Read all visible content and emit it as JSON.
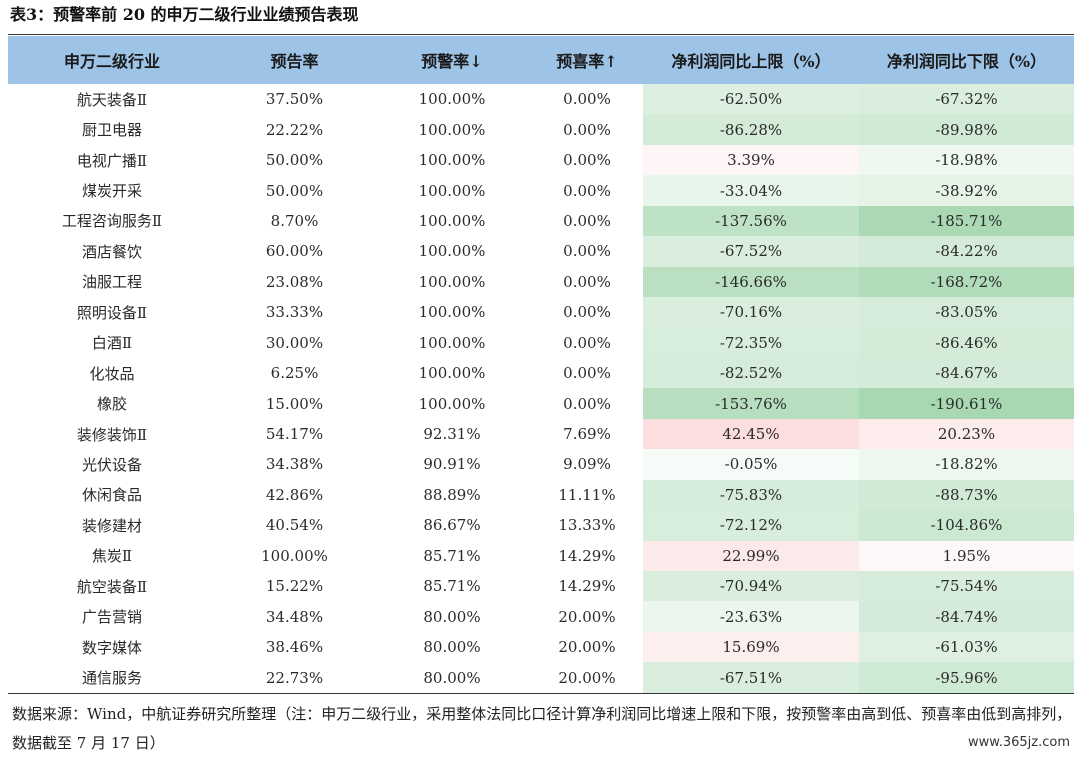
{
  "caption": "表3：预警率前 20 的申万二级行业业绩预告表现",
  "headers": [
    "申万二级行业",
    "预告率",
    "预警率↓",
    "预喜率↑",
    "净利润同比上限（%）",
    "净利润同比下限（%）"
  ],
  "colors": {
    "header_bg": "#9dc3e6",
    "positive": "#e8554f",
    "negative": "#5db66f"
  },
  "rows": [
    {
      "industry": "航天装备Ⅱ",
      "forecast_rate": "37.50%",
      "warning_rate": "100.00%",
      "happy_rate": "0.00%",
      "upper": "-62.50%",
      "lower": "-67.32%",
      "upper_val": -62.5,
      "lower_val": -67.32
    },
    {
      "industry": "厨卫电器",
      "forecast_rate": "22.22%",
      "warning_rate": "100.00%",
      "happy_rate": "0.00%",
      "upper": "-86.28%",
      "lower": "-89.98%",
      "upper_val": -86.28,
      "lower_val": -89.98
    },
    {
      "industry": "电视广播Ⅱ",
      "forecast_rate": "50.00%",
      "warning_rate": "100.00%",
      "happy_rate": "0.00%",
      "upper": "3.39%",
      "lower": "-18.98%",
      "upper_val": 3.39,
      "lower_val": -18.98
    },
    {
      "industry": "煤炭开采",
      "forecast_rate": "50.00%",
      "warning_rate": "100.00%",
      "happy_rate": "0.00%",
      "upper": "-33.04%",
      "lower": "-38.92%",
      "upper_val": -33.04,
      "lower_val": -38.92
    },
    {
      "industry": "工程咨询服务Ⅱ",
      "forecast_rate": "8.70%",
      "warning_rate": "100.00%",
      "happy_rate": "0.00%",
      "upper": "-137.56%",
      "lower": "-185.71%",
      "upper_val": -137.56,
      "lower_val": -185.71
    },
    {
      "industry": "酒店餐饮",
      "forecast_rate": "60.00%",
      "warning_rate": "100.00%",
      "happy_rate": "0.00%",
      "upper": "-67.52%",
      "lower": "-84.22%",
      "upper_val": -67.52,
      "lower_val": -84.22
    },
    {
      "industry": "油服工程",
      "forecast_rate": "23.08%",
      "warning_rate": "100.00%",
      "happy_rate": "0.00%",
      "upper": "-146.66%",
      "lower": "-168.72%",
      "upper_val": -146.66,
      "lower_val": -168.72
    },
    {
      "industry": "照明设备Ⅱ",
      "forecast_rate": "33.33%",
      "warning_rate": "100.00%",
      "happy_rate": "0.00%",
      "upper": "-70.16%",
      "lower": "-83.05%",
      "upper_val": -70.16,
      "lower_val": -83.05
    },
    {
      "industry": "白酒Ⅱ",
      "forecast_rate": "30.00%",
      "warning_rate": "100.00%",
      "happy_rate": "0.00%",
      "upper": "-72.35%",
      "lower": "-86.46%",
      "upper_val": -72.35,
      "lower_val": -86.46
    },
    {
      "industry": "化妆品",
      "forecast_rate": "6.25%",
      "warning_rate": "100.00%",
      "happy_rate": "0.00%",
      "upper": "-82.52%",
      "lower": "-84.67%",
      "upper_val": -82.52,
      "lower_val": -84.67
    },
    {
      "industry": "橡胶",
      "forecast_rate": "15.00%",
      "warning_rate": "100.00%",
      "happy_rate": "0.00%",
      "upper": "-153.76%",
      "lower": "-190.61%",
      "upper_val": -153.76,
      "lower_val": -190.61
    },
    {
      "industry": "装修装饰Ⅱ",
      "forecast_rate": "54.17%",
      "warning_rate": "92.31%",
      "happy_rate": "7.69%",
      "upper": "42.45%",
      "lower": "20.23%",
      "upper_val": 42.45,
      "lower_val": 20.23
    },
    {
      "industry": "光伏设备",
      "forecast_rate": "34.38%",
      "warning_rate": "90.91%",
      "happy_rate": "9.09%",
      "upper": "-0.05%",
      "lower": "-18.82%",
      "upper_val": -0.05,
      "lower_val": -18.82
    },
    {
      "industry": "休闲食品",
      "forecast_rate": "42.86%",
      "warning_rate": "88.89%",
      "happy_rate": "11.11%",
      "upper": "-75.83%",
      "lower": "-88.73%",
      "upper_val": -75.83,
      "lower_val": -88.73
    },
    {
      "industry": "装修建材",
      "forecast_rate": "40.54%",
      "warning_rate": "86.67%",
      "happy_rate": "13.33%",
      "upper": "-72.12%",
      "lower": "-104.86%",
      "upper_val": -72.12,
      "lower_val": -104.86
    },
    {
      "industry": "焦炭Ⅱ",
      "forecast_rate": "100.00%",
      "warning_rate": "85.71%",
      "happy_rate": "14.29%",
      "upper": "22.99%",
      "lower": "1.95%",
      "upper_val": 22.99,
      "lower_val": 1.95
    },
    {
      "industry": "航空装备Ⅱ",
      "forecast_rate": "15.22%",
      "warning_rate": "85.71%",
      "happy_rate": "14.29%",
      "upper": "-70.94%",
      "lower": "-75.54%",
      "upper_val": -70.94,
      "lower_val": -75.54
    },
    {
      "industry": "广告营销",
      "forecast_rate": "34.48%",
      "warning_rate": "80.00%",
      "happy_rate": "20.00%",
      "upper": "-23.63%",
      "lower": "-84.74%",
      "upper_val": -23.63,
      "lower_val": -84.74
    },
    {
      "industry": "数字媒体",
      "forecast_rate": "38.46%",
      "warning_rate": "80.00%",
      "happy_rate": "20.00%",
      "upper": "15.69%",
      "lower": "-61.03%",
      "upper_val": 15.69,
      "lower_val": -61.03
    },
    {
      "industry": "通信服务",
      "forecast_rate": "22.73%",
      "warning_rate": "80.00%",
      "happy_rate": "20.00%",
      "upper": "-67.51%",
      "lower": "-95.96%",
      "upper_val": -67.51,
      "lower_val": -95.96
    }
  ],
  "source_note": "数据来源：Wind，中航证券研究所整理（注：申万二级行业，采用整体法同比口径计算净利润同比增速上限和下限，按预警率由高到低、预喜率由低到高排列，数据截至 7 月 17 日）",
  "watermark": "www.365jz.com"
}
